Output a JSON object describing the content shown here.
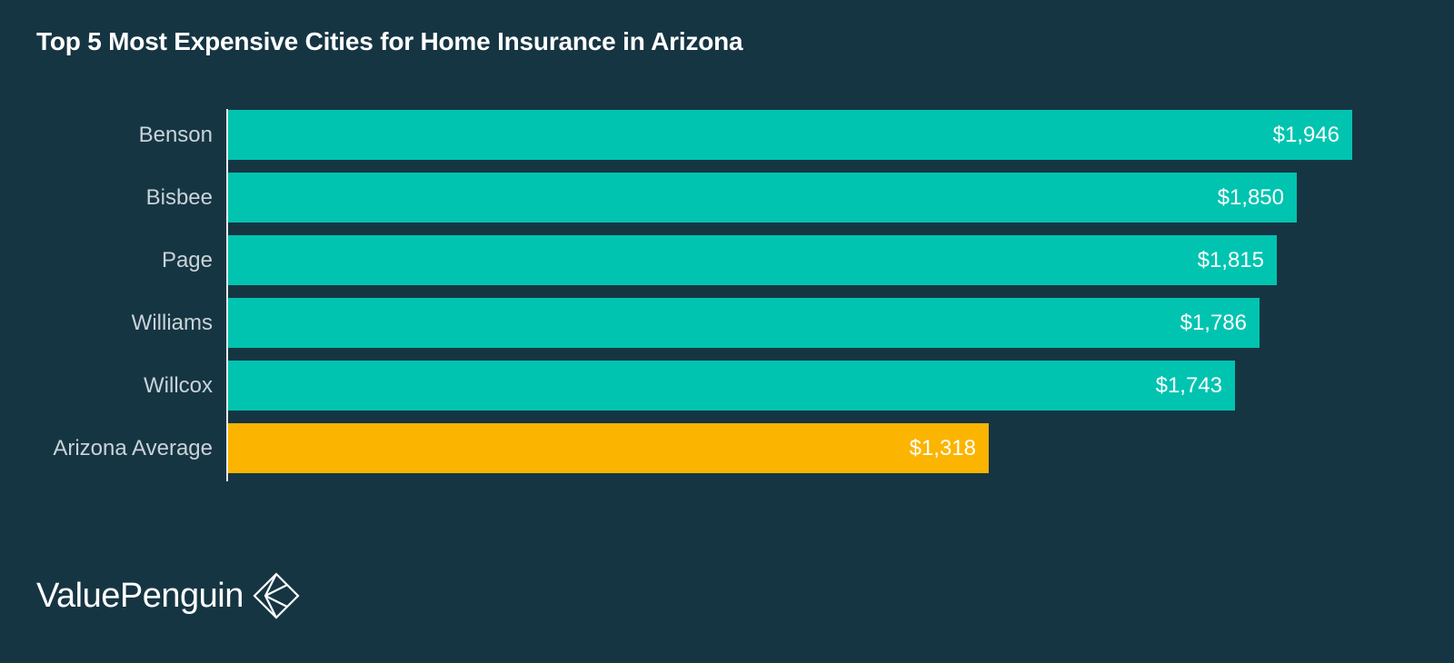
{
  "chart_data": {
    "type": "bar",
    "orientation": "horizontal",
    "title": "Top 5 Most Expensive Cities for Home Insurance in Arizona",
    "xlabel": "",
    "ylabel": "",
    "categories": [
      "Benson",
      "Bisbee",
      "Page",
      "Williams",
      "Willcox",
      "Arizona Average"
    ],
    "values": [
      1946,
      1850,
      1815,
      1786,
      1743,
      1318
    ],
    "value_labels": [
      "$1,946",
      "$1,850",
      "$1,815",
      "$1,786",
      "$1,743",
      "$1,318"
    ],
    "xlim": [
      0,
      1946
    ],
    "grid": false,
    "legend": "none",
    "colors": {
      "city_bar": "#00c4b0",
      "average_bar": "#fbb400",
      "background": "#163543",
      "axis": "#e6ecee"
    }
  },
  "brand": {
    "name": "ValuePenguin",
    "icon": "valuepenguin-logo-icon"
  }
}
